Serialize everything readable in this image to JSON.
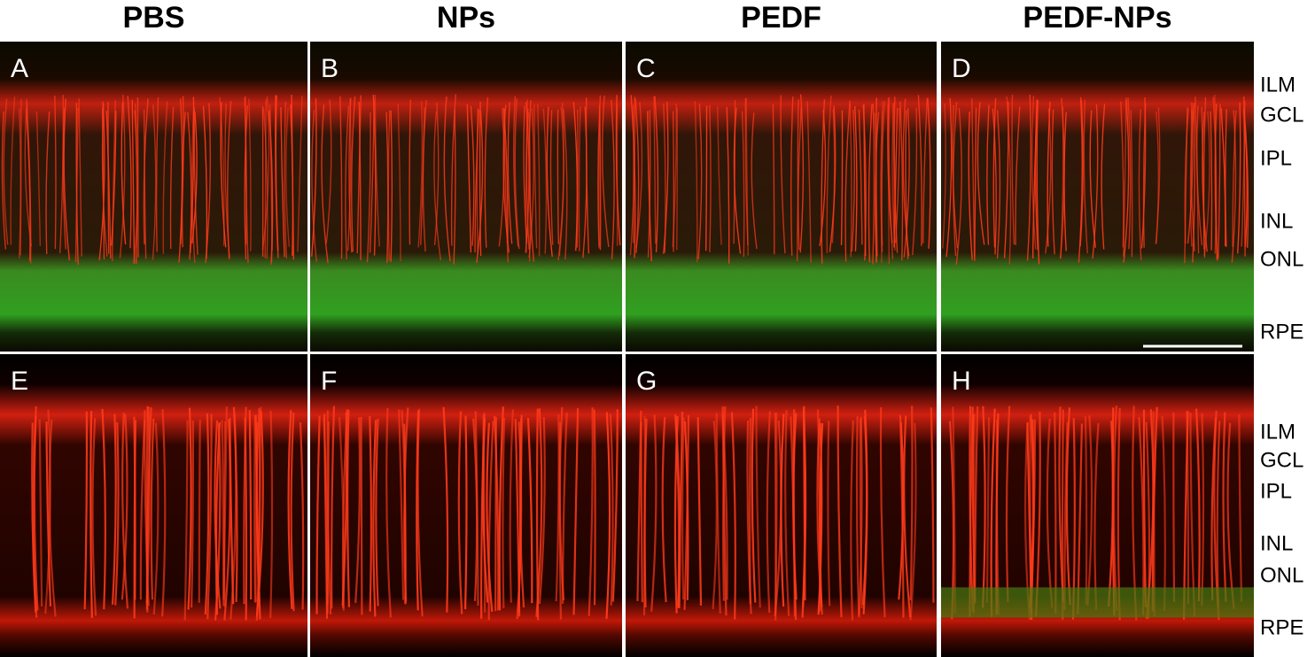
{
  "columns": [
    "PBS",
    "NPs",
    "PEDF",
    "PEDF-NPs"
  ],
  "panels": [
    "A",
    "B",
    "C",
    "D",
    "E",
    "F",
    "G",
    "H"
  ],
  "layer_labels_top": [
    "ILM",
    "GCL",
    "IPL",
    "INL",
    "ONL",
    "RPE"
  ],
  "layer_labels_bottom": [
    "ILM",
    "GCL",
    "IPL",
    "INL",
    "ONL",
    "RPE"
  ]
}
